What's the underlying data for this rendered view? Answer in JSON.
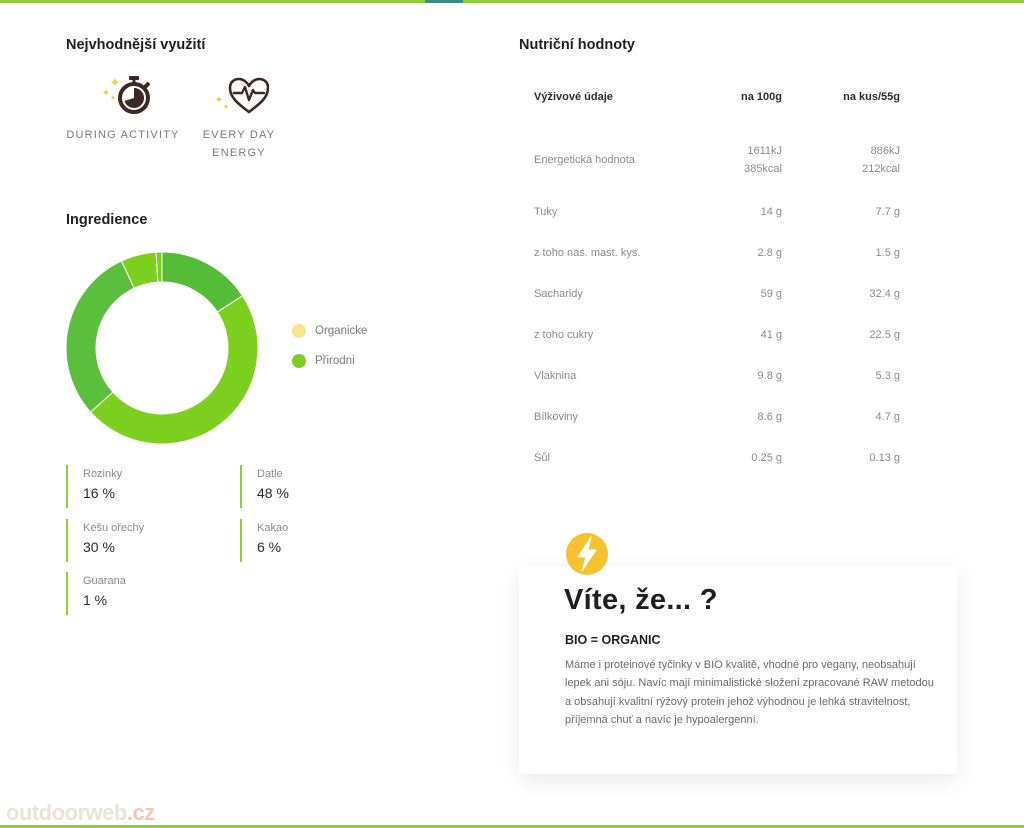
{
  "usage": {
    "title": "Nejvhodnější využití",
    "items": [
      {
        "label": "DURING ACTIVITY",
        "icon": "stopwatch-icon"
      },
      {
        "label": "EVERY DAY ENERGY",
        "icon": "heartbeat-icon"
      }
    ]
  },
  "ingredients": {
    "title": "Ingredience",
    "legend": [
      {
        "label": "Organicke",
        "color": "#fbe58a"
      },
      {
        "label": "Přirodni",
        "color": "#7ccf1e"
      }
    ],
    "items": [
      {
        "name": "Rozinky",
        "percent": "16 %"
      },
      {
        "name": "Datle",
        "percent": "48 %"
      },
      {
        "name": "Kešu ořechy",
        "percent": "30 %"
      },
      {
        "name": "Kakao",
        "percent": "6 %"
      },
      {
        "name": "Guarana",
        "percent": "1 %"
      }
    ]
  },
  "chart_data": {
    "type": "pie",
    "categories": [
      "Rozinky",
      "Datle",
      "Kešu ořechy",
      "Kakao",
      "Guarana"
    ],
    "values": [
      16,
      48,
      30,
      6,
      1
    ],
    "colors": [
      "#55bc38",
      "#7ccf1e",
      "#5abf3d",
      "#7ccf1e",
      "#7ccf1e"
    ],
    "legend_position": "right"
  },
  "nutrition": {
    "title": "Nutriční hodnoty",
    "headers": [
      "Výživové údaje",
      "na 100g",
      "na kus/55g"
    ],
    "energy": {
      "name": "Energetická hodnota",
      "kj100": "1611kJ",
      "kcal100": "385kcal",
      "kj55": "886kJ",
      "kcal55": "212kcal"
    },
    "rows": [
      {
        "name": "Tuky",
        "v100": "14 g",
        "v55": "7.7 g"
      },
      {
        "name": "z toho nas. mast. kys.",
        "v100": "2.8 g",
        "v55": "1.5 g"
      },
      {
        "name": "Sacharidy",
        "v100": "59 g",
        "v55": "32.4 g"
      },
      {
        "name": "z toho cukry",
        "v100": "41 g",
        "v55": "22.5 g"
      },
      {
        "name": "Vlaknina",
        "v100": "9.8 g",
        "v55": "5.3 g"
      },
      {
        "name": "Bílkoviny",
        "v100": "8.6 g",
        "v55": "4.7 g"
      },
      {
        "name": "Sůl",
        "v100": "0.25 g",
        "v55": "0.13 g"
      }
    ]
  },
  "didyouknow": {
    "title": "Víte, že... ?",
    "subtitle": "BIO = ORGANIC",
    "text": "Máme i proteinové tyčinky v BIO kvalitě, vhodné pro vegany, neobsahují lepek ani sóju. Navíc mají minimalistické složení zpracované RAW metodou a obsahují kvalitní rýžový protein jehož výhodnou je lehká stravitelnost, příjemná chuť a navíc je hypoalergenní.",
    "icon": "lightning-bolt-icon"
  },
  "watermark": {
    "main": "outdoorweb",
    "suffix": ".cz"
  },
  "colors": {
    "accent": "#8fce3a",
    "bolt": "#f6c12e"
  }
}
